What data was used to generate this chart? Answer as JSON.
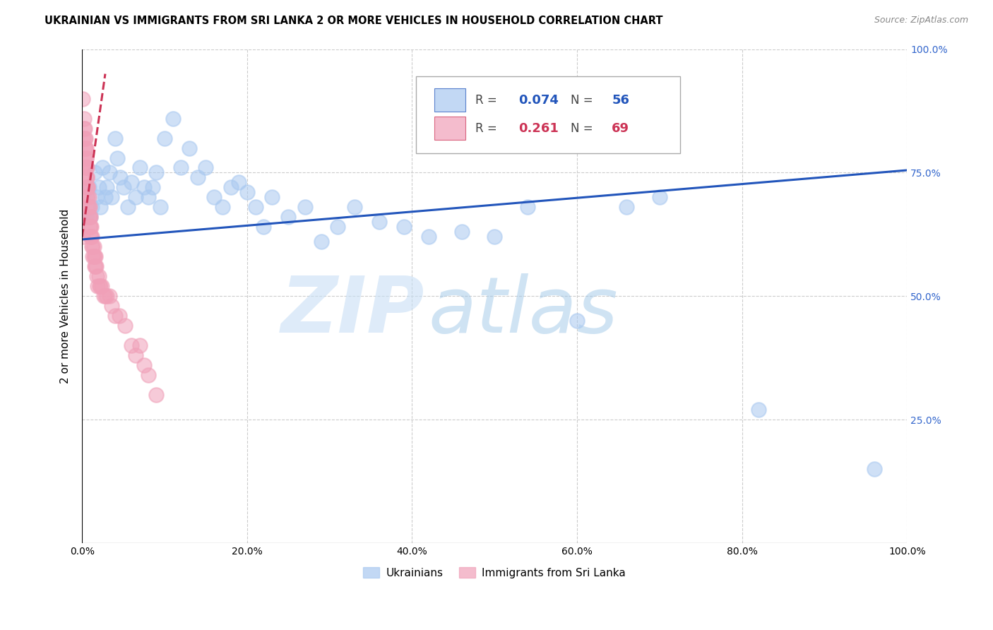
{
  "title": "UKRAINIAN VS IMMIGRANTS FROM SRI LANKA 2 OR MORE VEHICLES IN HOUSEHOLD CORRELATION CHART",
  "source": "Source: ZipAtlas.com",
  "ylabel": "2 or more Vehicles in Household",
  "xlim": [
    0,
    1.0
  ],
  "ylim": [
    0,
    1.0
  ],
  "xtick_labels": [
    "0.0%",
    "20.0%",
    "40.0%",
    "60.0%",
    "80.0%",
    "100.0%"
  ],
  "xtick_vals": [
    0,
    0.2,
    0.4,
    0.6,
    0.8,
    1.0
  ],
  "ytick_vals": [
    0.25,
    0.5,
    0.75,
    1.0
  ],
  "right_ytick_labels": [
    "25.0%",
    "50.0%",
    "75.0%",
    "100.0%"
  ],
  "blue_color": "#a8c8f0",
  "pink_color": "#f0a0b8",
  "blue_line_color": "#2255bb",
  "pink_line_color": "#cc3355",
  "watermark_zip": "ZIP",
  "watermark_atlas": "atlas",
  "grid_color": "#cccccc",
  "blue_R": "0.074",
  "blue_N": "56",
  "pink_R": "0.261",
  "pink_N": "69",
  "blue_points_x": [
    0.005,
    0.008,
    0.01,
    0.012,
    0.015,
    0.018,
    0.02,
    0.022,
    0.025,
    0.028,
    0.03,
    0.033,
    0.036,
    0.04,
    0.043,
    0.046,
    0.05,
    0.055,
    0.06,
    0.065,
    0.07,
    0.075,
    0.08,
    0.085,
    0.09,
    0.095,
    0.1,
    0.11,
    0.12,
    0.13,
    0.14,
    0.15,
    0.16,
    0.17,
    0.18,
    0.19,
    0.2,
    0.21,
    0.22,
    0.23,
    0.25,
    0.27,
    0.29,
    0.31,
    0.33,
    0.36,
    0.39,
    0.42,
    0.46,
    0.5,
    0.54,
    0.6,
    0.66,
    0.7,
    0.82,
    0.96
  ],
  "blue_points_y": [
    0.66,
    0.72,
    0.66,
    0.68,
    0.75,
    0.7,
    0.72,
    0.68,
    0.76,
    0.7,
    0.72,
    0.75,
    0.7,
    0.82,
    0.78,
    0.74,
    0.72,
    0.68,
    0.73,
    0.7,
    0.76,
    0.72,
    0.7,
    0.72,
    0.75,
    0.68,
    0.82,
    0.86,
    0.76,
    0.8,
    0.74,
    0.76,
    0.7,
    0.68,
    0.72,
    0.73,
    0.71,
    0.68,
    0.64,
    0.7,
    0.66,
    0.68,
    0.61,
    0.64,
    0.68,
    0.65,
    0.64,
    0.62,
    0.63,
    0.62,
    0.68,
    0.45,
    0.68,
    0.7,
    0.27,
    0.15
  ],
  "pink_points_x": [
    0.0005,
    0.001,
    0.0015,
    0.002,
    0.0025,
    0.003,
    0.003,
    0.003,
    0.0035,
    0.004,
    0.004,
    0.004,
    0.0045,
    0.005,
    0.005,
    0.005,
    0.005,
    0.005,
    0.0055,
    0.006,
    0.006,
    0.006,
    0.006,
    0.007,
    0.007,
    0.007,
    0.007,
    0.008,
    0.008,
    0.008,
    0.009,
    0.009,
    0.009,
    0.01,
    0.01,
    0.01,
    0.011,
    0.011,
    0.012,
    0.012,
    0.013,
    0.013,
    0.014,
    0.014,
    0.015,
    0.015,
    0.016,
    0.016,
    0.017,
    0.018,
    0.019,
    0.02,
    0.021,
    0.022,
    0.024,
    0.026,
    0.028,
    0.03,
    0.033,
    0.036,
    0.04,
    0.045,
    0.052,
    0.06,
    0.065,
    0.07,
    0.075,
    0.08,
    0.09
  ],
  "pink_points_y": [
    0.62,
    0.9,
    0.82,
    0.86,
    0.84,
    0.8,
    0.82,
    0.84,
    0.78,
    0.8,
    0.82,
    0.76,
    0.78,
    0.76,
    0.8,
    0.78,
    0.74,
    0.76,
    0.74,
    0.72,
    0.76,
    0.74,
    0.7,
    0.72,
    0.7,
    0.68,
    0.72,
    0.7,
    0.68,
    0.66,
    0.68,
    0.66,
    0.64,
    0.66,
    0.64,
    0.62,
    0.64,
    0.62,
    0.62,
    0.6,
    0.6,
    0.58,
    0.6,
    0.58,
    0.58,
    0.56,
    0.58,
    0.56,
    0.56,
    0.54,
    0.52,
    0.54,
    0.52,
    0.52,
    0.52,
    0.5,
    0.5,
    0.5,
    0.5,
    0.48,
    0.46,
    0.46,
    0.44,
    0.4,
    0.38,
    0.4,
    0.36,
    0.34,
    0.3
  ]
}
